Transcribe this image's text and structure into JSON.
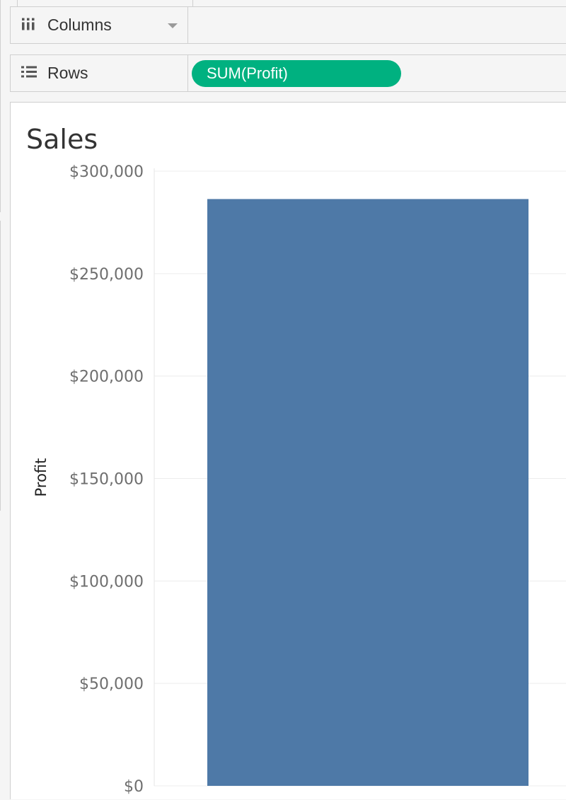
{
  "shelves": {
    "columns": {
      "label": "Columns",
      "icon": "columns-icon",
      "pills": []
    },
    "rows": {
      "label": "Rows",
      "icon": "rows-icon",
      "pills": [
        {
          "label": "SUM(Profit)",
          "color": "#00b180"
        }
      ]
    }
  },
  "sheet": {
    "title": "Sales"
  },
  "chart_data": {
    "type": "bar",
    "categories": [
      ""
    ],
    "values": [
      286397
    ],
    "ylabel": "Profit",
    "xlabel": "",
    "ylim": [
      0,
      300000
    ],
    "y_ticks": [
      "$0",
      "$50,000",
      "$100,000",
      "$150,000",
      "$200,000",
      "$250,000",
      "$300,000"
    ],
    "bar_color": "#4e79a7",
    "grid": true
  }
}
